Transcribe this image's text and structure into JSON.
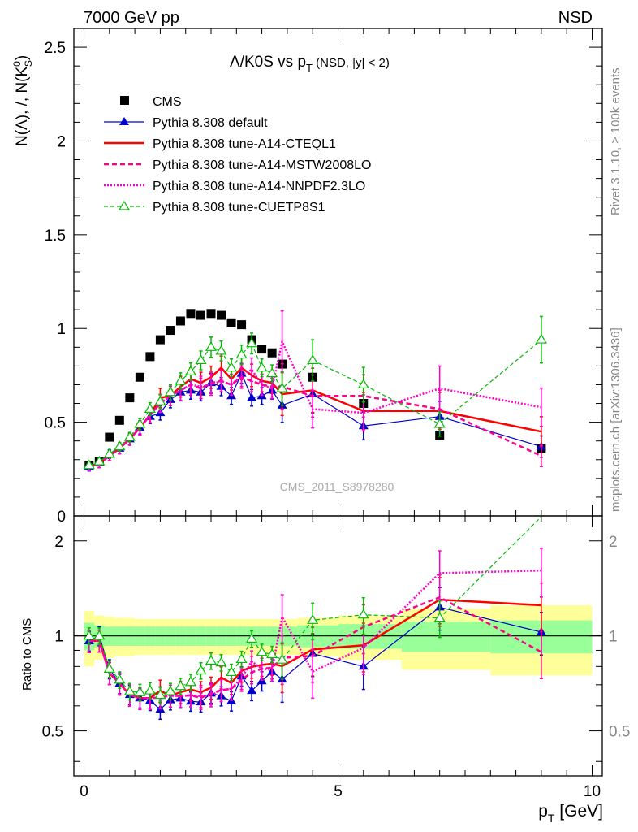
{
  "header": {
    "left": "7000 GeV pp",
    "right": "NSD"
  },
  "plot_title": {
    "main": "Λ/K0S vs p",
    "sub": "T",
    "suffix": " (NSD, |y| < 2)"
  },
  "y_label": "N(Λ), /, N(K",
  "y_label_sup": "0",
  "y_label_sub": "S",
  "y_label_close": ")",
  "ratio_label": "Ratio to CMS",
  "x_label": {
    "main": "p",
    "sub": "T",
    "suffix": " [GeV]"
  },
  "side_text_top": "Rivet 3.1.10, ≥ 100k events",
  "side_text_bottom": "mcplots.cern.ch [arXiv:1306.3436]",
  "watermark": "CMS_2011_S8978280",
  "legend": [
    "CMS",
    "Pythia 8.308 default",
    "Pythia 8.308 tune-A14-CTEQL1",
    "Pythia 8.308 tune-A14-MSTW2008LO",
    "Pythia 8.308 tune-A14-NNPDF2.3LO",
    "Pythia 8.308 tune-CUETP8S1"
  ],
  "colors": {
    "cms": "#000000",
    "default": "#0000cc",
    "cteql1": "#ff0000",
    "mstw": "#ff0088",
    "nnpdf": "#ff00cc",
    "cuetp8s1": "#00bb00",
    "band_inner": "#99ff99",
    "band_outer": "#ffff99"
  },
  "chart_data": {
    "type": "scatter",
    "xlim": [
      -0.2,
      10.2
    ],
    "main": {
      "ylim": [
        0,
        2.6
      ],
      "yticks": [
        "0",
        "0.5",
        "1",
        "1.5",
        "2",
        "2.5"
      ],
      "ytick_values": [
        0,
        0.5,
        1,
        1.5,
        2,
        2.5
      ]
    },
    "ratio": {
      "ylim": [
        0.36,
        2.4
      ],
      "yticks": [
        "0.5",
        "1",
        "2"
      ],
      "ytick_values": [
        0.5,
        1,
        2
      ]
    },
    "xticks": [
      "0",
      "5",
      "10"
    ],
    "xtick_values": [
      0,
      5,
      10
    ],
    "series": [
      {
        "key": "cms",
        "x": [
          0.1,
          0.3,
          0.5,
          0.7,
          0.9,
          1.1,
          1.3,
          1.5,
          1.7,
          1.9,
          2.1,
          2.3,
          2.5,
          2.7,
          2.9,
          3.1,
          3.3,
          3.5,
          3.7,
          3.9,
          4.5,
          5.5,
          7.0,
          9.0
        ],
        "y": [
          0.27,
          0.29,
          0.42,
          0.51,
          0.63,
          0.74,
          0.85,
          0.94,
          0.99,
          1.04,
          1.08,
          1.07,
          1.08,
          1.07,
          1.03,
          1.02,
          0.94,
          0.89,
          0.87,
          0.81,
          0.74,
          0.6,
          0.43,
          0.36
        ]
      },
      {
        "key": "default",
        "x": [
          0.1,
          0.3,
          0.5,
          0.7,
          0.9,
          1.1,
          1.3,
          1.5,
          1.7,
          1.9,
          2.1,
          2.3,
          2.5,
          2.7,
          2.9,
          3.1,
          3.3,
          3.5,
          3.7,
          3.9,
          4.5,
          5.5,
          7.0,
          9.0
        ],
        "y": [
          0.26,
          0.29,
          0.33,
          0.36,
          0.41,
          0.47,
          0.53,
          0.55,
          0.62,
          0.66,
          0.67,
          0.66,
          0.71,
          0.69,
          0.64,
          0.76,
          0.63,
          0.64,
          0.67,
          0.59,
          0.65,
          0.48,
          0.53,
          0.37
        ]
      },
      {
        "key": "cteql1",
        "x": [
          0.1,
          0.3,
          0.5,
          0.7,
          0.9,
          1.1,
          1.3,
          1.5,
          1.7,
          1.9,
          2.1,
          2.3,
          2.5,
          2.7,
          2.9,
          3.1,
          3.3,
          3.5,
          3.7,
          3.9,
          4.5,
          5.5,
          7.0,
          9.0
        ],
        "y": [
          0.26,
          0.28,
          0.32,
          0.36,
          0.41,
          0.47,
          0.54,
          0.63,
          0.64,
          0.69,
          0.73,
          0.71,
          0.74,
          0.79,
          0.73,
          0.79,
          0.75,
          0.72,
          0.71,
          0.65,
          0.67,
          0.56,
          0.56,
          0.45
        ]
      },
      {
        "key": "mstw",
        "x": [
          0.1,
          0.3,
          0.5,
          0.7,
          0.9,
          1.1,
          1.3,
          1.5,
          1.7,
          1.9,
          2.1,
          2.3,
          2.5,
          2.7,
          2.9,
          3.1,
          3.3,
          3.5,
          3.7,
          3.9,
          4.5,
          5.5,
          7.0,
          9.0
        ],
        "y": [
          0.26,
          0.28,
          0.32,
          0.36,
          0.41,
          0.47,
          0.54,
          0.6,
          0.64,
          0.67,
          0.7,
          0.68,
          0.71,
          0.72,
          0.7,
          0.74,
          0.72,
          0.7,
          0.69,
          0.69,
          0.64,
          0.64,
          0.57,
          0.32
        ]
      },
      {
        "key": "nnpdf",
        "x": [
          0.1,
          0.3,
          0.5,
          0.7,
          0.9,
          1.1,
          1.3,
          1.5,
          1.7,
          1.9,
          2.1,
          2.3,
          2.5,
          2.7,
          2.9,
          3.1,
          3.3,
          3.5,
          3.7,
          3.9,
          4.5,
          5.5,
          7.0,
          9.0
        ],
        "y": [
          0.26,
          0.28,
          0.32,
          0.36,
          0.41,
          0.47,
          0.54,
          0.6,
          0.64,
          0.67,
          0.7,
          0.69,
          0.7,
          0.72,
          0.7,
          0.75,
          0.78,
          0.7,
          0.68,
          0.93,
          0.57,
          0.55,
          0.68,
          0.58
        ]
      },
      {
        "key": "cuetp8s1",
        "x": [
          0.1,
          0.3,
          0.5,
          0.7,
          0.9,
          1.1,
          1.3,
          1.5,
          1.7,
          1.9,
          2.1,
          2.3,
          2.5,
          2.7,
          2.9,
          3.1,
          3.3,
          3.5,
          3.7,
          3.9,
          4.5,
          5.5,
          7.0,
          9.0
        ],
        "y": [
          0.27,
          0.29,
          0.33,
          0.37,
          0.42,
          0.49,
          0.57,
          0.61,
          0.66,
          0.72,
          0.77,
          0.83,
          0.9,
          0.88,
          0.79,
          0.86,
          0.92,
          0.79,
          0.76,
          0.68,
          0.83,
          0.7,
          0.49,
          0.94
        ]
      }
    ]
  }
}
